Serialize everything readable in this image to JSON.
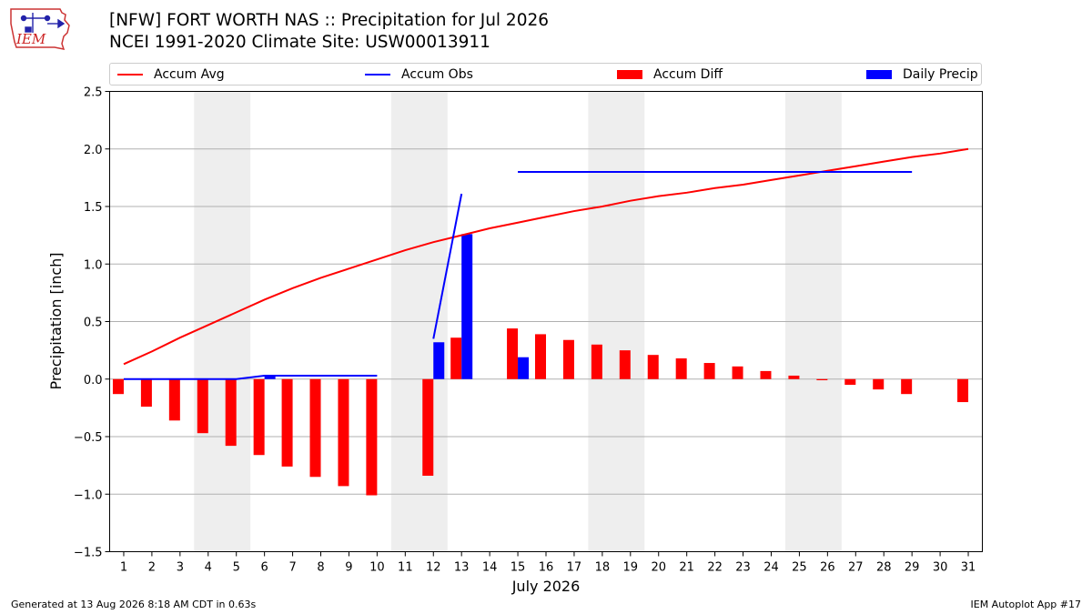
{
  "header": {
    "title_line1": "[NFW] FORT WORTH NAS :: Precipitation for Jul 2026",
    "title_line2": "NCEI 1991-2020 Climate Site: USW00013911",
    "logo_text": "IEM"
  },
  "legend": {
    "items": [
      {
        "label": "Accum Avg",
        "color": "#ff0000",
        "kind": "line"
      },
      {
        "label": "Accum Obs",
        "color": "#0000ff",
        "kind": "line"
      },
      {
        "label": "Accum Diff",
        "color": "#ff0000",
        "kind": "box"
      },
      {
        "label": "Daily Precip",
        "color": "#0000ff",
        "kind": "box"
      }
    ]
  },
  "footer": {
    "left": "Generated at 13 Aug 2026 8:18 AM CDT in 0.63s",
    "right": "IEM Autoplot App #17"
  },
  "chart_data": {
    "type": "bar",
    "xlabel": "July 2026",
    "ylabel": "Precipitation [inch]",
    "ylim": [
      -1.5,
      2.5
    ],
    "yticks": [
      -1.5,
      -1.0,
      -0.5,
      0.0,
      0.5,
      1.0,
      1.5,
      2.0,
      2.5
    ],
    "ytick_labels": [
      "−1.5",
      "−1.0",
      "−0.5",
      "0.0",
      "0.5",
      "1.0",
      "1.5",
      "2.0",
      "2.5"
    ],
    "xlim": [
      0.5,
      31.5
    ],
    "days": [
      1,
      2,
      3,
      4,
      5,
      6,
      7,
      8,
      9,
      10,
      11,
      12,
      13,
      14,
      15,
      16,
      17,
      18,
      19,
      20,
      21,
      22,
      23,
      24,
      25,
      26,
      27,
      28,
      29,
      30,
      31
    ],
    "grid": "horizontal",
    "weekend_shading": [
      [
        3.5,
        5.5
      ],
      [
        10.5,
        12.5
      ],
      [
        17.5,
        19.5
      ],
      [
        24.5,
        26.5
      ]
    ],
    "weekend_color": "#eeeeee",
    "accum_avg": [
      0.13,
      0.24,
      0.36,
      0.47,
      0.58,
      0.69,
      0.79,
      0.88,
      0.96,
      1.04,
      1.12,
      1.19,
      1.25,
      1.31,
      1.36,
      1.41,
      1.46,
      1.5,
      1.55,
      1.59,
      1.62,
      1.66,
      1.69,
      1.73,
      1.77,
      1.81,
      1.85,
      1.89,
      1.93,
      1.96,
      2.0
    ],
    "accum_obs_segments": [
      {
        "x": [
          1,
          2,
          3,
          4,
          5,
          6,
          7,
          8,
          9,
          10
        ],
        "y": [
          0,
          0,
          0,
          0,
          0,
          0.03,
          0.03,
          0.03,
          0.03,
          0.03
        ]
      },
      {
        "x": [
          12,
          13
        ],
        "y": [
          0.35,
          1.61
        ]
      },
      {
        "x": [
          15,
          16,
          17,
          18,
          19,
          20,
          21,
          22,
          23,
          24,
          25,
          26,
          27,
          28,
          29
        ],
        "y": [
          1.8,
          1.8,
          1.8,
          1.8,
          1.8,
          1.8,
          1.8,
          1.8,
          1.8,
          1.8,
          1.8,
          1.8,
          1.8,
          1.8,
          1.8
        ]
      }
    ],
    "accum_diff": [
      -0.13,
      -0.24,
      -0.36,
      -0.47,
      -0.58,
      -0.66,
      -0.76,
      -0.85,
      -0.93,
      -1.01,
      null,
      -0.84,
      0.36,
      null,
      0.44,
      0.39,
      0.34,
      0.3,
      0.25,
      0.21,
      0.18,
      0.14,
      0.11,
      0.07,
      0.03,
      -0.01,
      -0.05,
      -0.09,
      -0.13,
      null,
      -0.2
    ],
    "daily_precip": [
      0,
      0,
      0,
      0,
      0,
      0.03,
      0,
      0,
      0,
      0,
      0,
      0.32,
      1.26,
      0,
      0.19,
      0,
      0,
      0,
      0,
      0,
      0,
      0,
      0,
      0,
      0,
      0,
      0,
      0,
      0,
      0,
      0
    ],
    "colors": {
      "avg": "#ff0000",
      "obs": "#0000ff",
      "diff": "#ff0000",
      "daily": "#0000ff",
      "grid": "#b0b0b0"
    }
  }
}
